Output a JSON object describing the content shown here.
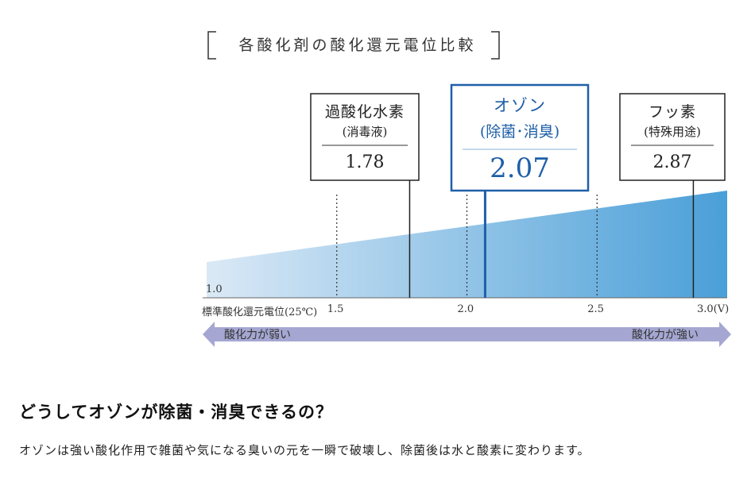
{
  "chart_data": {
    "type": "bar",
    "title": "各酸化剤の酸化還元電位比較",
    "x_axis": {
      "label": "標準酸化還元電位(25℃)",
      "min": 1.0,
      "max": 3.0,
      "ticks": [
        {
          "value": 1.0,
          "label": "1.0"
        },
        {
          "value": 1.5,
          "label": "1.5"
        },
        {
          "value": 2.0,
          "label": "2.0"
        },
        {
          "value": 2.5,
          "label": "2.5"
        },
        {
          "value": 3.0,
          "label": "3.0(V)"
        }
      ]
    },
    "items": [
      {
        "name": "過酸化水素",
        "sub": "(消毒液)",
        "value": 1.78,
        "value_label": "1.78",
        "highlight": false
      },
      {
        "name": "オゾン",
        "sub": "(除菌･消臭)",
        "value": 2.07,
        "value_label": "2.07",
        "highlight": true
      },
      {
        "name": "フッ素",
        "sub": "(特殊用途)",
        "value": 2.87,
        "value_label": "2.87",
        "highlight": false
      }
    ],
    "arrow": {
      "left_label": "酸化力が弱い",
      "right_label": "酸化力が強い"
    },
    "colors": {
      "gradient_start": "#dbe9f6",
      "gradient_end": "#4a9fd8",
      "highlight": "#1f5fa8",
      "arrow": "#a5a7d2"
    }
  },
  "section": {
    "heading": "どうしてオゾンが除菌・消臭できるの？",
    "body": "オゾンは強い酸化作用で雑菌や気になる臭いの元を一瞬で破壊し、除菌後は水と酸素に変わります。"
  }
}
